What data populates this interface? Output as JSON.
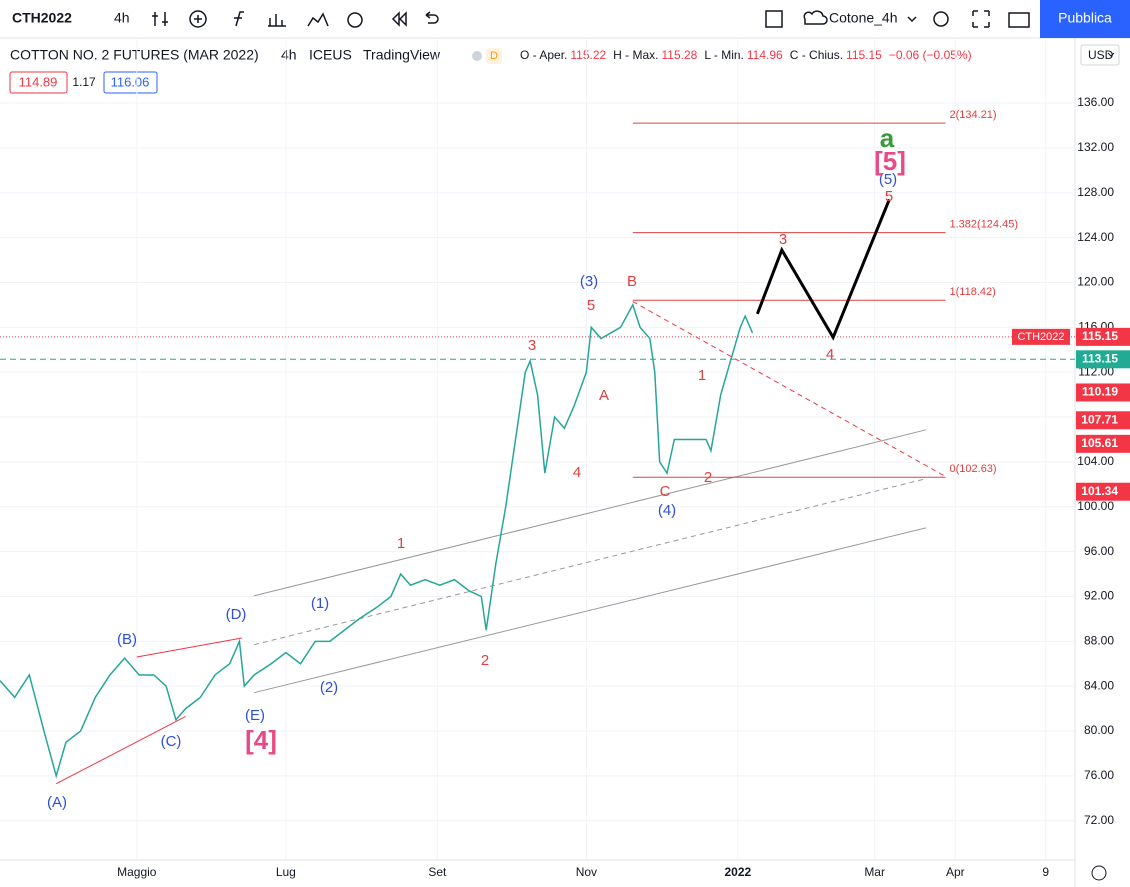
{
  "toolbar": {
    "symbol": "CTH2022",
    "interval": "4h",
    "layout": "Cotone_4h",
    "publish": "Pubblica"
  },
  "header": {
    "title": "COTTON NO. 2 FUTURES (MAR 2022)",
    "interval": "4h",
    "exchange": "ICEUS",
    "source": "TradingView",
    "badge": "D",
    "ohlc": [
      {
        "label": "O - Aper.",
        "value": "115.22"
      },
      {
        "label": "H - Max.",
        "value": "115.28"
      },
      {
        "label": "L - Min.",
        "value": "114.96"
      },
      {
        "label": "C - Chius.",
        "value": "115.15"
      }
    ],
    "change": "−0.06 (−0.05%)",
    "bid": "114.89",
    "spread": "1.17",
    "ask": "116.06",
    "currency": "USD"
  },
  "chart_data": {
    "type": "line",
    "color": "#26a69a",
    "x": [
      0,
      6,
      12,
      18,
      23,
      27,
      33,
      39,
      45,
      51,
      57,
      63,
      68,
      72,
      76,
      82,
      88,
      94,
      98,
      100,
      104,
      111,
      117,
      123,
      129,
      135,
      141,
      147,
      154,
      160,
      164,
      168,
      174,
      180,
      186,
      192,
      197,
      199,
      203,
      207,
      211,
      215,
      217,
      220,
      223,
      227,
      231,
      235,
      240,
      242,
      246,
      250,
      254,
      259,
      262,
      266,
      268,
      270,
      273,
      276,
      282,
      289,
      291,
      295,
      299,
      303,
      305,
      308
    ],
    "values": [
      84.5,
      83,
      85,
      80,
      76,
      79,
      80,
      83,
      85,
      86.5,
      85,
      85,
      84,
      81,
      82,
      83,
      85,
      86,
      88,
      84,
      85,
      86,
      87,
      86,
      88,
      88,
      89,
      90,
      91,
      92,
      94,
      93,
      93.5,
      93,
      93.5,
      92.5,
      92,
      89,
      95,
      100,
      106,
      112,
      113,
      110,
      103,
      108,
      107,
      109,
      112,
      116,
      115,
      115.5,
      116,
      118,
      116,
      115,
      112,
      104,
      103,
      106,
      106,
      106,
      105,
      110,
      113,
      116,
      117,
      115.5
    ],
    "projection": {
      "color": "#000000",
      "x": [
        310,
        320,
        341,
        364
      ],
      "values": [
        117.2,
        122.9,
        115.1,
        127.4
      ]
    },
    "xlim": [
      0,
      440
    ],
    "ylim": [
      68.5,
      141.8
    ],
    "xticks": [
      {
        "value": 56,
        "label": "Maggio"
      },
      {
        "value": 117,
        "label": "Lug"
      },
      {
        "value": 179,
        "label": "Set"
      },
      {
        "value": 240,
        "label": "Nov"
      },
      {
        "value": 302,
        "label": "2022"
      },
      {
        "value": 358,
        "label": "Mar"
      },
      {
        "value": 391,
        "label": "Apr"
      },
      {
        "value": 428,
        "label": "9"
      }
    ],
    "yticks": [
      {
        "value": 136,
        "label": "136.00"
      },
      {
        "value": 132,
        "label": "132.00"
      },
      {
        "value": 128,
        "label": "128.00"
      },
      {
        "value": 124,
        "label": "124.00"
      },
      {
        "value": 120,
        "label": "120.00"
      },
      {
        "value": 116,
        "label": "116.00"
      },
      {
        "value": 112,
        "label": "112.00"
      },
      {
        "value": 108,
        "label": "108.00"
      },
      {
        "value": 104,
        "label": "104.00"
      },
      {
        "value": 100,
        "label": "100.00"
      },
      {
        "value": 96,
        "label": "96.00"
      },
      {
        "value": 92,
        "label": "92.00"
      },
      {
        "value": 88,
        "label": "88.00"
      },
      {
        "value": 84,
        "label": "84.00"
      },
      {
        "value": 80,
        "label": "80.00"
      },
      {
        "value": 76,
        "label": "76.00"
      },
      {
        "value": 72,
        "label": "72.00"
      }
    ],
    "fib_levels": [
      {
        "value": 134.21,
        "label": "2(134.21)"
      },
      {
        "value": 124.45,
        "label": "1.382(124.45)"
      },
      {
        "value": 118.42,
        "label": "1(118.42)"
      },
      {
        "value": 102.63,
        "label": "0(102.63)"
      }
    ],
    "fib_x": [
      259,
      387
    ],
    "trendlines": [
      {
        "color": "#999999",
        "dash": false,
        "x": [
          104,
          379
        ],
        "values": [
          92.06,
          106.86
        ]
      },
      {
        "color": "#999999",
        "dash": false,
        "x": [
          104,
          379
        ],
        "values": [
          83.42,
          98.12
        ]
      },
      {
        "color": "#999999",
        "dash": true,
        "x": [
          104,
          379
        ],
        "values": [
          87.7,
          102.5
        ]
      },
      {
        "color": "#f23645",
        "dash": false,
        "x": [
          23,
          76
        ],
        "values": [
          75.3,
          81.3
        ]
      },
      {
        "color": "#f23645",
        "dash": false,
        "x": [
          56,
          99
        ],
        "values": [
          86.6,
          88.3
        ]
      },
      {
        "color": "#f23645",
        "dash": true,
        "x": [
          259,
          387
        ],
        "values": [
          118.3,
          102.7
        ]
      }
    ],
    "last_price": {
      "name": "CTH2022",
      "value": 115.15,
      "label": "115.15",
      "color": "#f23645"
    },
    "price_tags": [
      {
        "value": 113.15,
        "label": "113.15",
        "color": "#22ab94"
      },
      {
        "value": 110.19,
        "label": "110.19",
        "color": "#f23645"
      },
      {
        "value": 107.71,
        "label": "107.71",
        "color": "#f23645"
      },
      {
        "value": 105.61,
        "label": "105.61",
        "color": "#f23645"
      },
      {
        "value": 101.34,
        "label": "101.34",
        "color": "#f23645"
      }
    ],
    "annotations": [
      {
        "text": "(A)",
        "color": "#2e4fd6"
      },
      {
        "text": "(B)",
        "color": "#2e4fd6"
      },
      {
        "text": "(C)",
        "color": "#2e4fd6"
      },
      {
        "text": "(D)",
        "color": "#2e4fd6"
      },
      {
        "text": "(E)",
        "color": "#2e4fd6"
      },
      {
        "text": "[4]",
        "color": "#e84a86"
      },
      {
        "text": "(1)",
        "color": "#2e4fd6"
      },
      {
        "text": "(2)",
        "color": "#2e4fd6"
      },
      {
        "text": "1",
        "color": "#e04040"
      },
      {
        "text": "2",
        "color": "#e04040"
      },
      {
        "text": "3",
        "color": "#e04040"
      },
      {
        "text": "4",
        "color": "#e04040"
      },
      {
        "text": "A",
        "color": "#e04040"
      },
      {
        "text": "5",
        "color": "#e04040"
      },
      {
        "text": "(3)",
        "color": "#2e4fd6"
      },
      {
        "text": "B",
        "color": "#e04040"
      },
      {
        "text": "C",
        "color": "#e04040"
      },
      {
        "text": "(4)",
        "color": "#2e4fd6"
      },
      {
        "text": "1",
        "color": "#e04040"
      },
      {
        "text": "2",
        "color": "#e04040"
      },
      {
        "text": "3",
        "color": "#e04040"
      },
      {
        "text": "4",
        "color": "#e04040"
      },
      {
        "text": "5",
        "color": "#e04040"
      },
      {
        "text": "(5)",
        "color": "#2e4fd6"
      },
      {
        "text": "[5]",
        "color": "#e84a86"
      },
      {
        "text": "a",
        "color": "#3a9a3a"
      }
    ]
  }
}
